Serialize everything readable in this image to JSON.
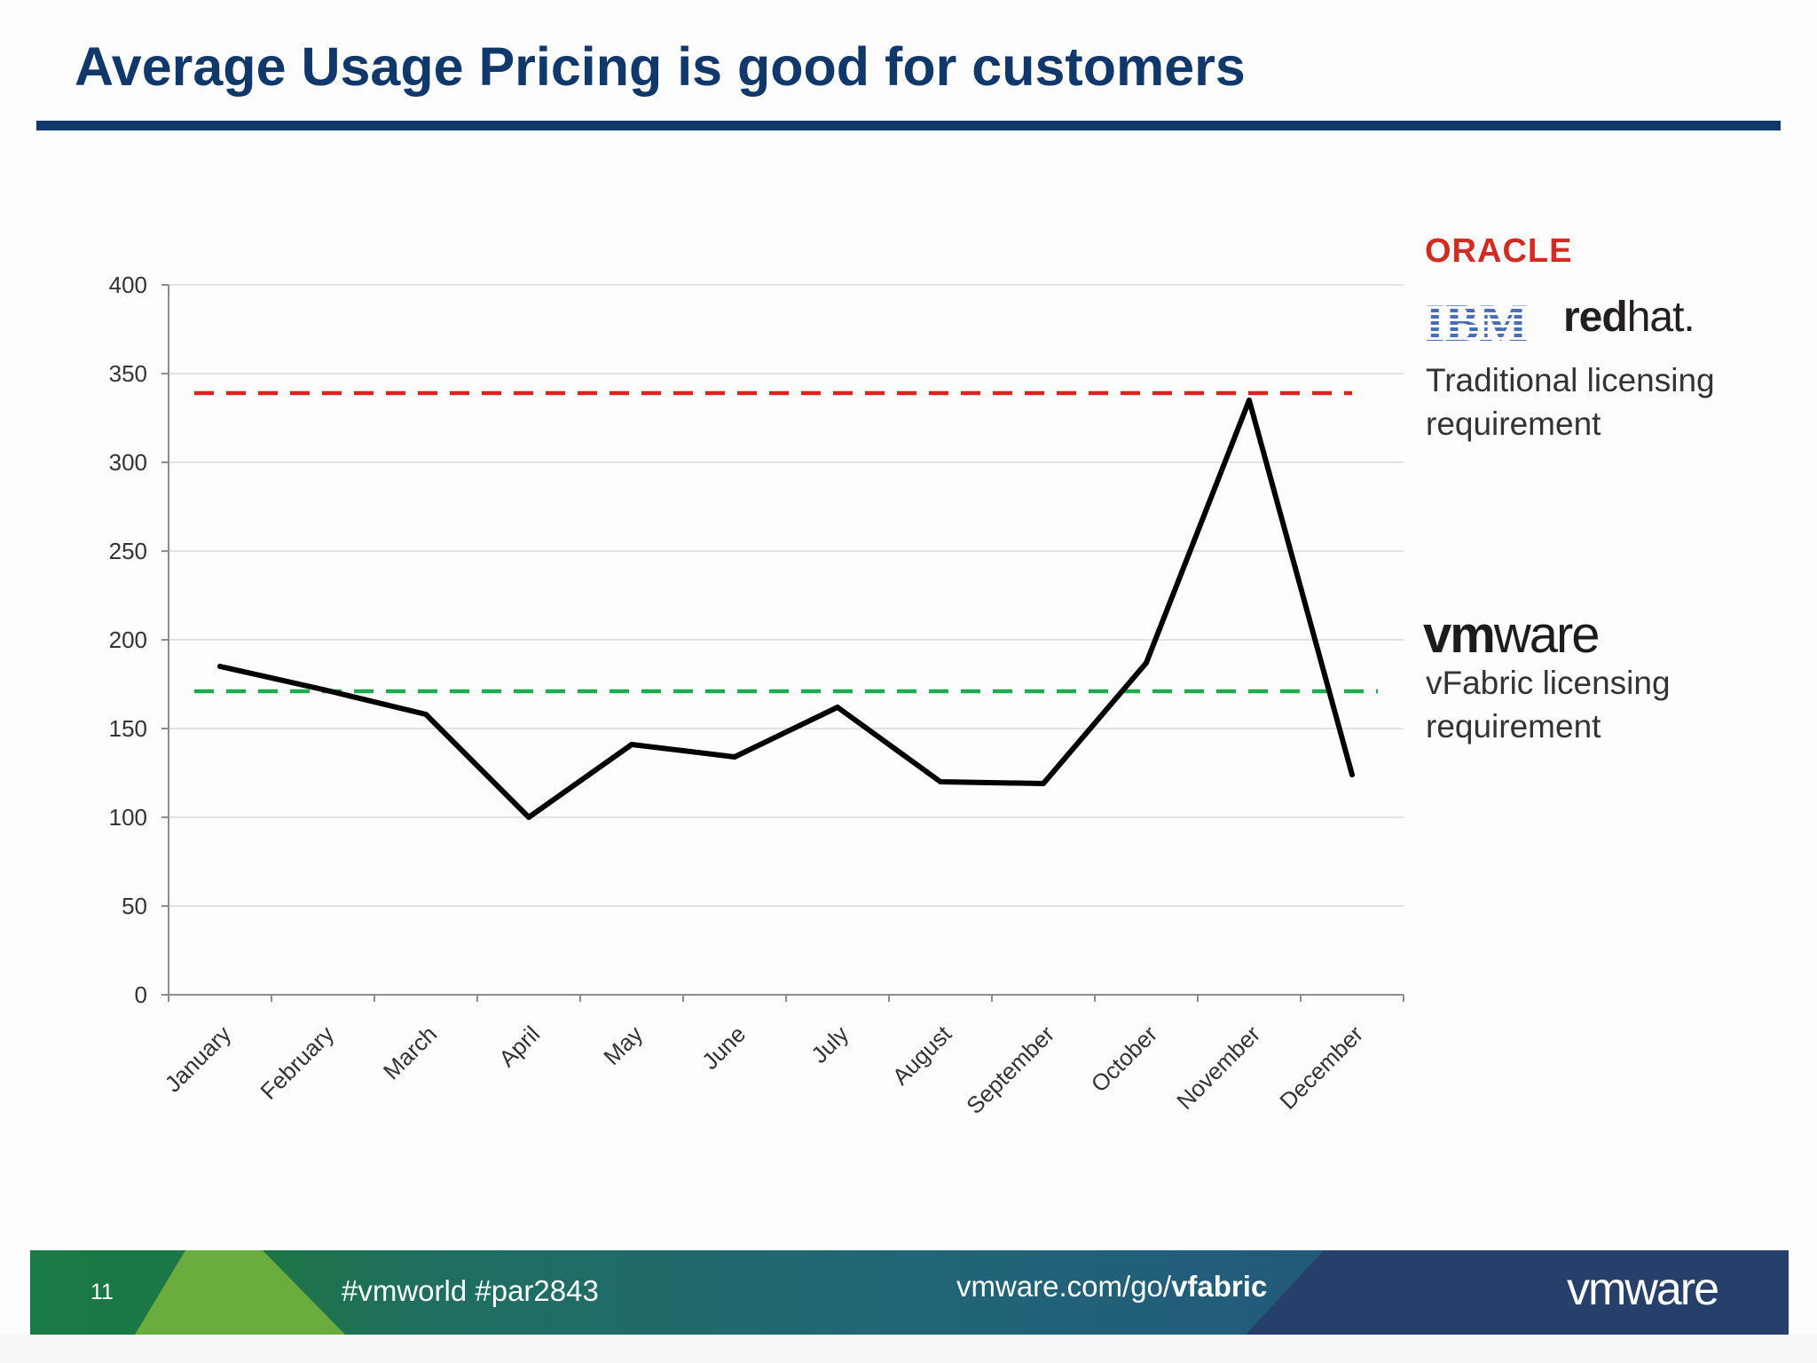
{
  "slide": {
    "title": "Average Usage Pricing is good for customers",
    "page_number": "11",
    "hashtags": "#vmworld #par2843",
    "url_prefix": "vmware.com/go/",
    "url_bold": "vfabric",
    "footer_logo": "vmware"
  },
  "side": {
    "oracle_logo": "ORACLE",
    "ibm_logo": "IBM",
    "redhat_logo_bold": "red",
    "redhat_logo_regular": "hat.",
    "traditional_note": "Traditional licensing requirement",
    "vmware_logo_bold": "vm",
    "vmware_logo_regular": "ware",
    "vfabric_note": "vFabric licensing requirement"
  },
  "colors": {
    "title": "#10386b",
    "traditional_line": "#e0201f",
    "vfabric_line": "#1aac4e",
    "usage_line": "#000000",
    "oracle": "#d12c22",
    "ibm": "#4a6eb5"
  },
  "chart_data": {
    "type": "line",
    "categories": [
      "January",
      "February",
      "March",
      "April",
      "May",
      "June",
      "July",
      "August",
      "September",
      "October",
      "November",
      "December"
    ],
    "series": [
      {
        "values": [
          185,
          172,
          158,
          100,
          141,
          134,
          162,
          120,
          119,
          187,
          335,
          124
        ]
      }
    ],
    "reference_lines": [
      {
        "label": "Traditional licensing requirement",
        "value": 339,
        "style": "dashed",
        "color": "#e0201f"
      },
      {
        "label": "vFabric licensing requirement",
        "value": 171,
        "style": "dashed",
        "color": "#1aac4e"
      }
    ],
    "yticks": [
      0,
      50,
      100,
      150,
      200,
      250,
      300,
      350,
      400
    ],
    "ylim": [
      0,
      400
    ],
    "grid": true,
    "title": "",
    "xlabel": "",
    "ylabel": ""
  }
}
